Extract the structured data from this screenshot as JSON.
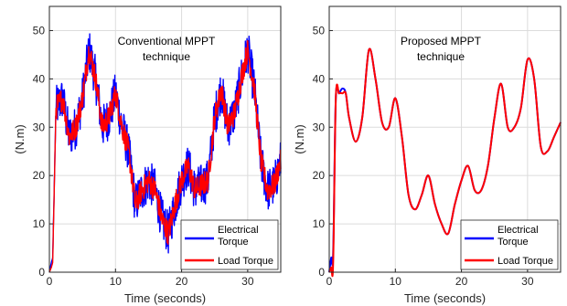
{
  "chart_data": [
    {
      "type": "line",
      "annotation": [
        "Conventional MPPT",
        "technique"
      ],
      "xlabel": "Time (seconds)",
      "ylabel": "(N.m)",
      "xlim": [
        0,
        35
      ],
      "ylim": [
        0,
        55
      ],
      "xticks": [
        0,
        10,
        20,
        30
      ],
      "yticks": [
        0,
        10,
        20,
        30,
        40,
        50
      ],
      "grid": true,
      "legend_position": "bottom-right",
      "legend": [
        "Electrical Torque",
        "Load Torque"
      ],
      "noise": [
        4.5,
        2.5
      ],
      "series": [
        {
          "name": "Electrical Torque",
          "color": "#0000ff",
          "x": [
            0,
            0.3,
            0.5,
            1,
            2,
            3,
            4,
            5,
            6,
            7,
            8,
            9,
            10,
            11,
            12,
            13,
            14,
            15,
            16,
            17,
            18,
            19,
            20,
            21,
            22,
            23,
            24,
            25,
            26,
            27,
            28,
            29,
            30,
            31,
            32,
            33,
            34,
            35
          ],
          "values": [
            0,
            2,
            3,
            34,
            36,
            28,
            30,
            36,
            46,
            40,
            30,
            32,
            37,
            30,
            25,
            14,
            17,
            19,
            17,
            11,
            8,
            14,
            19,
            22,
            17,
            18,
            19,
            32,
            38,
            30,
            33,
            40,
            46,
            38,
            23,
            17,
            18,
            23
          ]
        },
        {
          "name": "Load Torque",
          "color": "#ff0000",
          "x": [
            0,
            0.3,
            0.5,
            1,
            2,
            3,
            4,
            5,
            6,
            7,
            8,
            9,
            10,
            11,
            12,
            13,
            14,
            15,
            16,
            17,
            18,
            19,
            20,
            21,
            22,
            23,
            24,
            25,
            26,
            27,
            28,
            29,
            30,
            31,
            32,
            33,
            34,
            35
          ],
          "values": [
            0,
            1,
            2,
            34,
            36,
            28,
            30,
            36,
            46,
            40,
            30,
            32,
            37,
            30,
            25,
            14,
            17,
            19,
            17,
            11,
            8,
            14,
            19,
            22,
            17,
            18,
            19,
            32,
            38,
            30,
            33,
            40,
            46,
            38,
            23,
            17,
            18,
            23
          ]
        }
      ]
    },
    {
      "type": "line",
      "annotation": [
        "Proposed MPPT",
        "technique"
      ],
      "xlabel": "Time (seconds)",
      "ylabel": "(N.m)",
      "xlim": [
        0,
        35
      ],
      "ylim": [
        0,
        55
      ],
      "xticks": [
        0,
        10,
        20,
        30
      ],
      "yticks": [
        0,
        10,
        20,
        30,
        40,
        50
      ],
      "grid": true,
      "legend_position": "bottom-right",
      "legend": [
        "Electrical Torque",
        "Load Torque"
      ],
      "noise": [
        0,
        0
      ],
      "series": [
        {
          "name": "Electrical Torque",
          "color": "#0000ff",
          "x": [
            0,
            0.3,
            0.6,
            1,
            1.5,
            2,
            2.5,
            3,
            4,
            5,
            6,
            7,
            8,
            9,
            10,
            11,
            12,
            13,
            14,
            15,
            16,
            17,
            18,
            19,
            20,
            21,
            22,
            23,
            24,
            25,
            26,
            27,
            28,
            29,
            30,
            31,
            32,
            33,
            34,
            35
          ],
          "values": [
            0,
            3,
            4,
            36,
            37,
            38,
            37,
            32,
            27,
            32,
            46,
            40,
            31,
            30,
            36,
            28,
            16,
            13,
            16,
            20,
            14,
            10,
            8,
            14,
            19,
            22,
            17,
            17,
            22,
            32,
            39,
            30,
            30,
            34,
            44,
            40,
            26,
            25,
            28,
            31
          ]
        },
        {
          "name": "Load Torque",
          "color": "#ff0000",
          "x": [
            0,
            0.3,
            0.6,
            1,
            1.5,
            2,
            2.5,
            3,
            4,
            5,
            6,
            7,
            8,
            9,
            10,
            11,
            12,
            13,
            14,
            15,
            16,
            17,
            18,
            19,
            20,
            21,
            22,
            23,
            24,
            25,
            26,
            27,
            28,
            29,
            30,
            31,
            32,
            33,
            34,
            35
          ],
          "values": [
            0,
            1,
            2,
            36,
            37,
            37,
            37,
            32,
            27,
            32,
            46,
            40,
            31,
            30,
            36,
            28,
            16,
            13,
            16,
            20,
            14,
            10,
            8,
            14,
            19,
            22,
            17,
            17,
            22,
            32,
            39,
            30,
            30,
            34,
            44,
            40,
            26,
            25,
            28,
            31
          ]
        }
      ]
    }
  ]
}
